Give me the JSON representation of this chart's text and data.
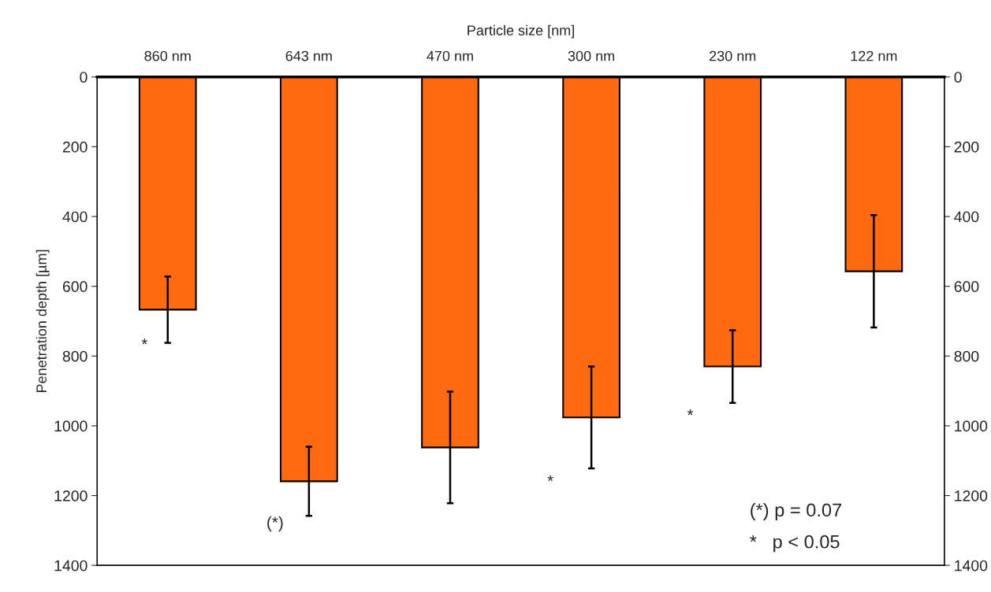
{
  "chart_data": {
    "type": "bar",
    "xlabel": "Particle size [nm]",
    "ylabel": "Penetration depth [µm]",
    "categories": [
      "860 nm",
      "643 nm",
      "470 nm",
      "300 nm",
      "230 nm",
      "122 nm"
    ],
    "values": [
      667,
      1159,
      1062,
      976,
      830,
      557
    ],
    "errors": [
      95,
      99,
      160,
      146,
      104,
      161
    ],
    "color": "#ff6a10",
    "ylim": [
      1400,
      0
    ],
    "yticks": [
      0,
      200,
      400,
      600,
      800,
      1000,
      1200,
      1400
    ],
    "y2lim": [
      1400,
      0
    ],
    "y2ticks": [
      0,
      200,
      400,
      600,
      800,
      1000,
      1200,
      1400
    ],
    "grid": false,
    "annotations": [
      "*",
      "(*)",
      "*",
      "*",
      "(*) p = 0.07",
      "*   p < 0.05"
    ]
  }
}
